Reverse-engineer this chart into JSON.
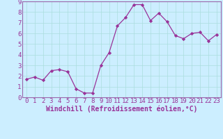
{
  "x": [
    0,
    1,
    2,
    3,
    4,
    5,
    6,
    7,
    8,
    9,
    10,
    11,
    12,
    13,
    14,
    15,
    16,
    17,
    18,
    19,
    20,
    21,
    22,
    23
  ],
  "y": [
    1.7,
    1.9,
    1.6,
    2.5,
    2.6,
    2.4,
    0.8,
    0.4,
    0.4,
    3.0,
    4.2,
    6.7,
    7.5,
    8.7,
    8.7,
    7.2,
    7.9,
    7.1,
    5.8,
    5.5,
    6.0,
    6.1,
    5.3,
    5.9
  ],
  "line_color": "#993399",
  "marker": "D",
  "marker_size": 2.2,
  "background_color": "#cceeff",
  "grid_color": "#aadddd",
  "xlabel": "Windchill (Refroidissement éolien,°C)",
  "xlabel_fontsize": 7,
  "xlim": [
    -0.5,
    23.5
  ],
  "ylim": [
    0,
    9
  ],
  "yticks": [
    0,
    1,
    2,
    3,
    4,
    5,
    6,
    7,
    8,
    9
  ],
  "xticks": [
    0,
    1,
    2,
    3,
    4,
    5,
    6,
    7,
    8,
    9,
    10,
    11,
    12,
    13,
    14,
    15,
    16,
    17,
    18,
    19,
    20,
    21,
    22,
    23
  ],
  "tick_fontsize": 6.5,
  "spine_color": "#9966aa",
  "label_color": "#993399",
  "bottom_bar_color": "#9933aa",
  "bottom_bar_height": 0.13
}
